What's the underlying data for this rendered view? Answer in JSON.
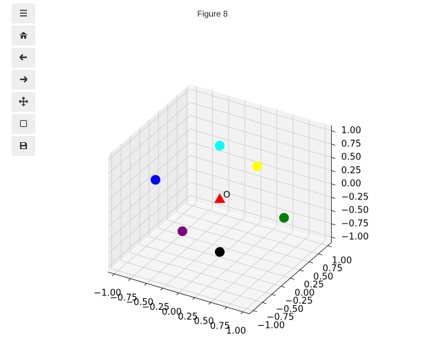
{
  "window_title": "Figure 8",
  "chart_data": {
    "type": "scatter3d",
    "x": [
      0,
      0,
      0,
      0,
      1,
      -1,
      0
    ],
    "y": [
      0,
      0,
      1,
      -1,
      0,
      0,
      0
    ],
    "z": [
      1,
      -1,
      0,
      0,
      0,
      0,
      0
    ],
    "colors": [
      "cyan",
      "black",
      "yellow",
      "purple",
      "green",
      "blue",
      "red"
    ],
    "markers": [
      "o",
      "o",
      "o",
      "o",
      "o",
      "o",
      "^"
    ],
    "annotations": [
      {
        "text": "O",
        "x": 0,
        "y": 0,
        "z": 0
      }
    ],
    "xlim": [
      -1.1,
      1.1
    ],
    "ylim": [
      -1.1,
      1.1
    ],
    "zlim": [
      -1.1,
      1.1
    ],
    "xticks": [
      {
        "value": -1,
        "label": "−1.00"
      },
      {
        "value": -0.75,
        "label": "−0.75"
      },
      {
        "value": -0.5,
        "label": "−0.50"
      },
      {
        "value": -0.25,
        "label": "−0.25"
      },
      {
        "value": 0,
        "label": "0.00"
      },
      {
        "value": 0.25,
        "label": "0.25"
      },
      {
        "value": 0.5,
        "label": "0.50"
      },
      {
        "value": 0.75,
        "label": "0.75"
      },
      {
        "value": 1,
        "label": "1.00"
      }
    ],
    "yticks": [
      {
        "value": -1,
        "label": "−1.00"
      },
      {
        "value": -0.75,
        "label": "−0.75"
      },
      {
        "value": -0.5,
        "label": "−0.50"
      },
      {
        "value": -0.25,
        "label": "−0.25"
      },
      {
        "value": 0,
        "label": "0.00"
      },
      {
        "value": 0.25,
        "label": "0.25"
      },
      {
        "value": 0.5,
        "label": "0.50"
      },
      {
        "value": 0.75,
        "label": "0.75"
      },
      {
        "value": 1,
        "label": "1.00"
      }
    ],
    "zticks": [
      {
        "value": -1,
        "label": "−1.00"
      },
      {
        "value": -0.75,
        "label": "−0.75"
      },
      {
        "value": -0.5,
        "label": "−0.50"
      },
      {
        "value": -0.25,
        "label": "−0.25"
      },
      {
        "value": 0,
        "label": "0.00"
      },
      {
        "value": 0.25,
        "label": "0.25"
      },
      {
        "value": 0.5,
        "label": "0.50"
      },
      {
        "value": 0.75,
        "label": "0.75"
      },
      {
        "value": 1,
        "label": "1.00"
      }
    ],
    "grid": true
  }
}
